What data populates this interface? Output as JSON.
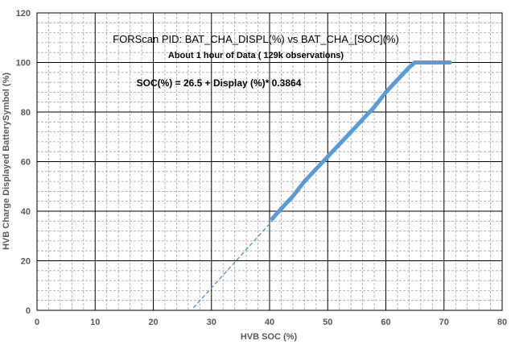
{
  "chart_data": {
    "type": "scatter",
    "title": "FORScan PID: BAT_CHA_DISPL(%) vs BAT_CHA_[SOC](%)",
    "subtitle": "About 1 hour of Data ( 129k observations)",
    "annotation": "SOC(%) = 26.5 + Display (%)* 0.3864",
    "xlabel": "HVB SOC (%)",
    "ylabel": "HVB Charge  Displayed BatterySymbol (%)",
    "xlim": [
      0,
      80
    ],
    "ylim": [
      0,
      120
    ],
    "xticks": [
      "0",
      "10",
      "20",
      "30",
      "40",
      "50",
      "60",
      "70",
      "80"
    ],
    "yticks": [
      "0",
      "20",
      "40",
      "60",
      "80",
      "100",
      "120"
    ],
    "grid": true,
    "legend": "none",
    "series": [
      {
        "kind": "points",
        "color": "#5b9bd5",
        "x": [
          40.5,
          42,
          44,
          46,
          48,
          50,
          52,
          54,
          56,
          58,
          60,
          62,
          64,
          65,
          66,
          67,
          68,
          69,
          70,
          71
        ],
        "y": [
          37,
          41,
          46,
          52,
          57,
          62,
          67,
          72,
          77,
          82,
          88,
          93,
          98,
          100,
          100,
          100,
          100,
          100,
          100,
          100
        ]
      },
      {
        "kind": "trendline",
        "color": "#5b9bd5",
        "x": [
          26.9,
          40.5
        ],
        "y": [
          1.0,
          36.2
        ]
      }
    ]
  }
}
